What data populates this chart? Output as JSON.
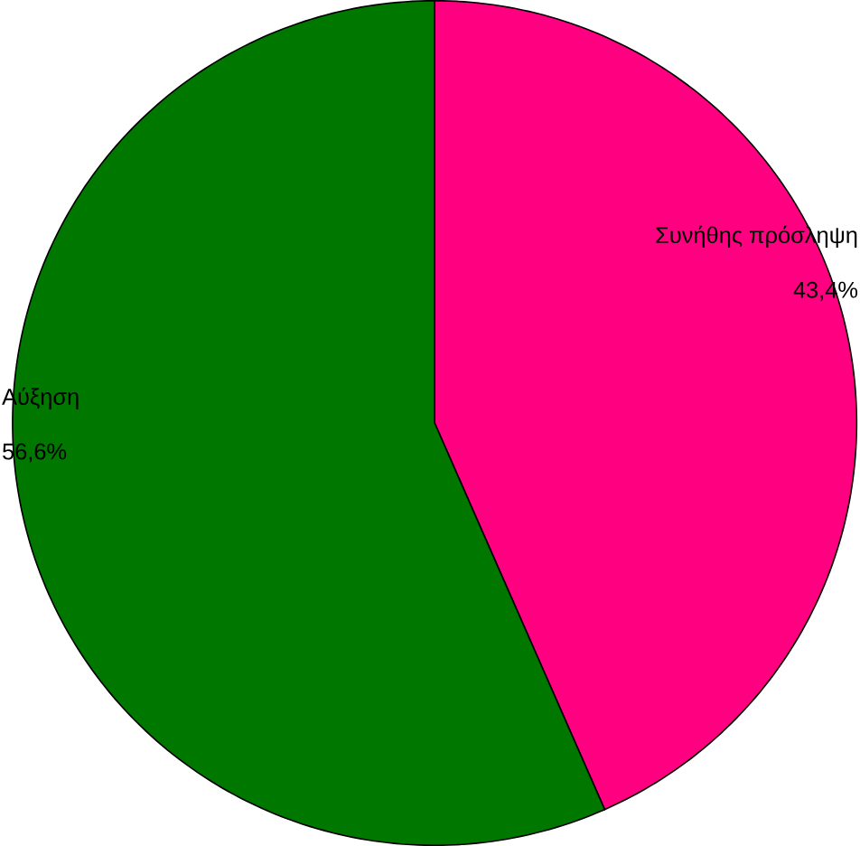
{
  "chart_data": {
    "type": "pie",
    "categories": [
      "Συνήθης πρόσληψη",
      "Αύξηση"
    ],
    "values": [
      43.4,
      56.6
    ],
    "colors": [
      "#ff0080",
      "#007800"
    ],
    "value_labels": [
      "43,4%",
      "56,6%"
    ]
  }
}
